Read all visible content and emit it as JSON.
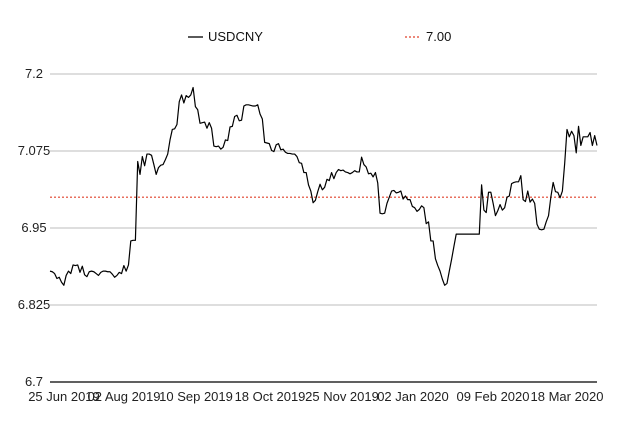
{
  "chart_data": {
    "type": "line",
    "legend_position": "top",
    "grid": "horizontal",
    "ylim": [
      6.7,
      7.2
    ],
    "y_ticks": [
      "7.2",
      "7.075",
      "6.95",
      "6.825",
      "6.7"
    ],
    "x_ticks": [
      "25 Jun 2019",
      "02 Aug 2019",
      "10 Sep 2019",
      "18 Oct 2019",
      "25 Nov 2019",
      "02 Jan 2020",
      "09 Feb 2020",
      "18 Mar 2020"
    ],
    "colors": {
      "series": "#000000",
      "reference": "#e0402a",
      "grid": "#bdbdbd"
    },
    "reference": {
      "name": "7.00",
      "value": 7.0
    },
    "series": [
      {
        "name": "USDCNY",
        "values": [
          6.88,
          6.879,
          6.876,
          6.868,
          6.87,
          6.862,
          6.857,
          6.873,
          6.88,
          6.876,
          6.89,
          6.889,
          6.89,
          6.878,
          6.888,
          6.874,
          6.871,
          6.879,
          6.88,
          6.879,
          6.876,
          6.873,
          6.878,
          6.88,
          6.88,
          6.879,
          6.879,
          6.875,
          6.87,
          6.873,
          6.878,
          6.876,
          6.889,
          6.88,
          6.89,
          6.929,
          6.93,
          6.93,
          7.058,
          7.037,
          7.066,
          7.051,
          7.07,
          7.07,
          7.068,
          7.053,
          7.037,
          7.048,
          7.052,
          7.053,
          7.061,
          7.07,
          7.093,
          7.11,
          7.111,
          7.118,
          7.155,
          7.166,
          7.153,
          7.165,
          7.162,
          7.166,
          7.178,
          7.147,
          7.142,
          7.12,
          7.121,
          7.122,
          7.112,
          7.121,
          7.112,
          7.083,
          7.082,
          7.083,
          7.078,
          7.081,
          7.093,
          7.092,
          7.114,
          7.115,
          7.131,
          7.133,
          7.124,
          7.125,
          7.148,
          7.15,
          7.15,
          7.149,
          7.148,
          7.148,
          7.15,
          7.135,
          7.127,
          7.089,
          7.088,
          7.087,
          7.076,
          7.074,
          7.085,
          7.087,
          7.077,
          7.078,
          7.073,
          7.071,
          7.071,
          7.07,
          7.07,
          7.066,
          7.056,
          7.055,
          7.04,
          7.04,
          7.02,
          7.01,
          6.991,
          6.995,
          7.009,
          7.021,
          7.012,
          7.016,
          7.029,
          7.027,
          7.04,
          7.03,
          7.04,
          7.045,
          7.043,
          7.044,
          7.041,
          7.04,
          7.038,
          7.04,
          7.043,
          7.041,
          7.041,
          7.065,
          7.053,
          7.049,
          7.038,
          7.039,
          7.033,
          7.04,
          7.023,
          6.974,
          6.973,
          6.974,
          6.99,
          7.0,
          7.01,
          7.011,
          7.007,
          7.008,
          7.01,
          6.997,
          7.002,
          6.996,
          6.996,
          6.985,
          6.983,
          6.977,
          6.98,
          6.986,
          6.983,
          6.957,
          6.96,
          6.929,
          6.929,
          6.9,
          6.889,
          6.88,
          6.867,
          6.857,
          6.86,
          6.88,
          6.899,
          6.92,
          6.94,
          6.94,
          6.94,
          6.94,
          6.94,
          6.94,
          6.94,
          6.94,
          6.94,
          6.94,
          6.94,
          7.02,
          6.979,
          6.975,
          7.008,
          7.008,
          6.99,
          6.97,
          6.978,
          6.988,
          6.979,
          6.983,
          7.0,
          7.002,
          7.022,
          7.024,
          7.025,
          7.025,
          7.035,
          6.996,
          6.993,
          7.01,
          6.992,
          6.997,
          6.99,
          6.956,
          6.948,
          6.947,
          6.948,
          6.96,
          6.97,
          7.0,
          7.024,
          7.009,
          7.008,
          6.999,
          7.01,
          7.055,
          7.11,
          7.098,
          7.107,
          7.1,
          7.072,
          7.115,
          7.084,
          7.098,
          7.098,
          7.098,
          7.105,
          7.084,
          7.1,
          7.084
        ]
      }
    ]
  }
}
